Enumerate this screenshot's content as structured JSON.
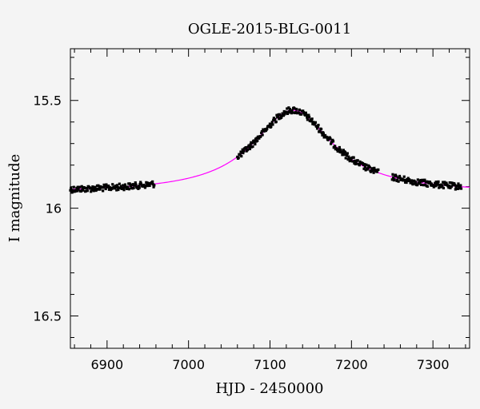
{
  "chart_data": {
    "type": "scatter",
    "title": "OGLE-2015-BLG-0011",
    "xlabel": "HJD - 2450000",
    "ylabel": "I magnitude",
    "xlim": [
      6855,
      7345
    ],
    "ylim": [
      16.65,
      15.26
    ],
    "y_inverted": true,
    "grid": false,
    "x_ticks": [
      6900,
      7000,
      7100,
      7200,
      7300
    ],
    "y_ticks": [
      15.5,
      16,
      16.5
    ],
    "x_tick_labels": [
      "6900",
      "7000",
      "7100",
      "7200",
      "7300"
    ],
    "y_tick_labels": [
      "15.5",
      "16",
      "16.5"
    ],
    "series": [
      {
        "kind": "points",
        "color": "#000000",
        "segments": [
          {
            "x_start": 6855,
            "x_end": 6958
          },
          {
            "x_start": 7060,
            "x_end": 7233
          },
          {
            "x_start": 7250,
            "x_end": 7335
          }
        ]
      },
      {
        "kind": "model-curve",
        "color": "#ff00ff",
        "model": {
          "baseline": 15.93,
          "peak": 15.545,
          "t0": 7128,
          "width": 60
        }
      }
    ]
  }
}
